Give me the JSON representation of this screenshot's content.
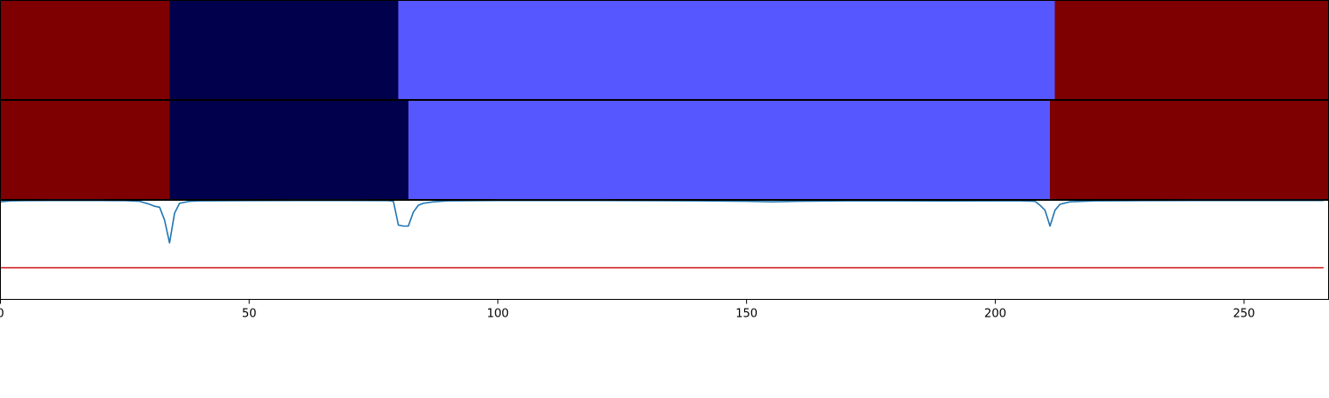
{
  "chart_data": [
    {
      "type": "heatmap",
      "row": "top",
      "segments": [
        {
          "start": 0,
          "end": 34,
          "color": "#7f0000"
        },
        {
          "start": 34,
          "end": 80,
          "color": "#00004c"
        },
        {
          "start": 80,
          "end": 212,
          "color": "#5757ff"
        },
        {
          "start": 212,
          "end": 267,
          "color": "#7f0000"
        }
      ],
      "xlim": [
        0,
        267
      ]
    },
    {
      "type": "heatmap",
      "row": "middle",
      "segments": [
        {
          "start": 0,
          "end": 34,
          "color": "#7f0000"
        },
        {
          "start": 34,
          "end": 82,
          "color": "#00004c"
        },
        {
          "start": 82,
          "end": 211,
          "color": "#5757ff"
        },
        {
          "start": 211,
          "end": 267,
          "color": "#7f0000"
        }
      ],
      "xlim": [
        0,
        267
      ]
    },
    {
      "type": "line",
      "xlim": [
        0,
        267
      ],
      "ylim": [
        0,
        1
      ],
      "xticks": [
        0,
        50,
        100,
        150,
        200,
        250
      ],
      "xticklabels": [
        "0",
        "50",
        "100",
        "150",
        "200",
        "250"
      ],
      "grid": false,
      "series": [
        {
          "color": "#1f77b4",
          "x": [
            0,
            2,
            5,
            10,
            20,
            25,
            28,
            30,
            31,
            32,
            33,
            34,
            35,
            36,
            38,
            40,
            50,
            60,
            70,
            78,
            79,
            80,
            81,
            82,
            83,
            84,
            85,
            87,
            90,
            100,
            120,
            140,
            150,
            155,
            160,
            170,
            180,
            190,
            200,
            205,
            208,
            209,
            210,
            211,
            212,
            213,
            215,
            220,
            230,
            240,
            250,
            260,
            266
          ],
          "y": [
            0.985,
            0.995,
            0.997,
            0.998,
            0.998,
            0.997,
            0.99,
            0.96,
            0.94,
            0.93,
            0.8,
            0.57,
            0.87,
            0.97,
            0.99,
            0.995,
            0.997,
            0.998,
            0.998,
            0.997,
            0.99,
            0.75,
            0.74,
            0.74,
            0.88,
            0.95,
            0.97,
            0.985,
            0.995,
            0.998,
            0.998,
            0.995,
            0.99,
            0.985,
            0.99,
            0.995,
            0.995,
            0.994,
            0.995,
            0.995,
            0.99,
            0.95,
            0.9,
            0.74,
            0.9,
            0.96,
            0.985,
            0.995,
            0.997,
            0.998,
            0.998,
            0.998,
            0.998
          ]
        },
        {
          "color": "#d62728",
          "x": [
            0,
            266
          ],
          "y": [
            0.32,
            0.32
          ]
        }
      ]
    }
  ]
}
